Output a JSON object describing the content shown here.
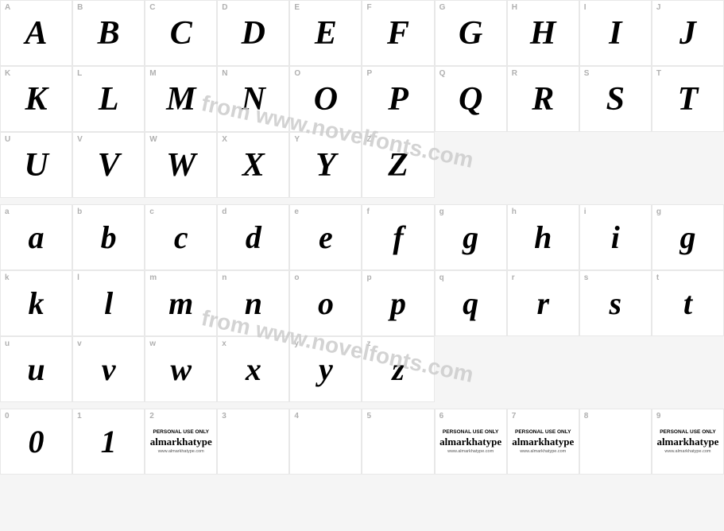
{
  "watermark": "from www.novelfonts.com",
  "logo": {
    "line1": "PERSONAL USE ONLY",
    "line2": "almarkhatype",
    "line3": "www.almarkhatype.com"
  },
  "rows": [
    {
      "labels": [
        "A",
        "B",
        "C",
        "D",
        "E",
        "F",
        "G",
        "H",
        "I",
        "J"
      ],
      "glyphs": [
        "A",
        "B",
        "C",
        "D",
        "E",
        "F",
        "G",
        "H",
        "I",
        "J"
      ],
      "class": "upper"
    },
    {
      "labels": [
        "K",
        "L",
        "M",
        "N",
        "O",
        "P",
        "Q",
        "R",
        "S",
        "T"
      ],
      "glyphs": [
        "K",
        "L",
        "M",
        "N",
        "O",
        "P",
        "Q",
        "R",
        "S",
        "T"
      ],
      "class": "upper"
    },
    {
      "labels": [
        "U",
        "V",
        "W",
        "X",
        "Y",
        "Z",
        "",
        "",
        "",
        ""
      ],
      "glyphs": [
        "U",
        "V",
        "W",
        "X",
        "Y",
        "Z",
        "",
        "",
        "",
        ""
      ],
      "class": "upper",
      "count": 6
    },
    {
      "labels": [
        "a",
        "b",
        "c",
        "d",
        "e",
        "f",
        "g",
        "h",
        "i",
        "g"
      ],
      "glyphs": [
        "a",
        "b",
        "c",
        "d",
        "e",
        "f",
        "g",
        "h",
        "i",
        "g"
      ],
      "class": "lower"
    },
    {
      "labels": [
        "k",
        "l",
        "m",
        "n",
        "o",
        "p",
        "q",
        "r",
        "s",
        "t"
      ],
      "glyphs": [
        "k",
        "l",
        "m",
        "n",
        "o",
        "p",
        "q",
        "r",
        "s",
        "t"
      ],
      "class": "lower"
    },
    {
      "labels": [
        "u",
        "v",
        "w",
        "x",
        "y",
        "z",
        "",
        "",
        "",
        ""
      ],
      "glyphs": [
        "u",
        "v",
        "w",
        "x",
        "y",
        "z",
        "",
        "",
        "",
        ""
      ],
      "class": "lower",
      "count": 6
    },
    {
      "labels": [
        "0",
        "1",
        "2",
        "3",
        "4",
        "5",
        "6",
        "7",
        "8",
        "9"
      ],
      "glyphs": [
        "0",
        "1",
        "LOGO",
        "",
        "",
        "",
        "LOGO",
        "LOGO",
        "",
        "LOGO"
      ],
      "class": "num"
    }
  ]
}
